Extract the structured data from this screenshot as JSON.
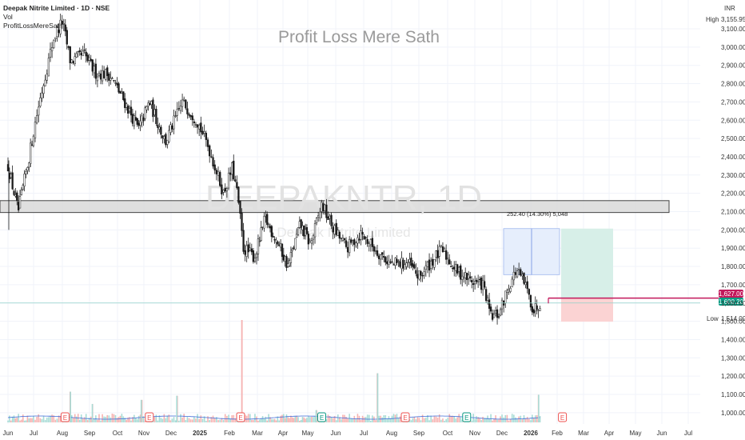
{
  "header": {
    "title": "Deepak Nitrite Limited · 1D · NSE",
    "vol_label": "Vol",
    "indicator_label": "ProfitLossMereSath",
    "watermark": "Profit Loss Mere Sath",
    "symbol_watermark": "DEEPAKNTR, 1D",
    "symbol_subwatermark": "Deepak Nitrite Limited"
  },
  "price_axis": {
    "currency": "INR",
    "ticks": [
      "3,100.00",
      "3,000.00",
      "2,900.00",
      "2,800.00",
      "2,700.00",
      "2,600.00",
      "2,500.00",
      "2,400.00",
      "2,300.00",
      "2,200.00",
      "2,100.00",
      "2,000.00",
      "1,900.00",
      "1,800.00",
      "1,700.00",
      "1,600.00",
      "1,500.00",
      "1,400.00",
      "1,300.00",
      "1,200.00",
      "1,100.00",
      "1,000.00"
    ],
    "high_label": "High",
    "high_value": "3,155.95",
    "low_label": "Low",
    "low_value": "1,514.00",
    "badge_upper": "1,627.00",
    "badge_current": "1,600.20"
  },
  "time_axis": {
    "labels": [
      "Jun",
      "Jul",
      "Aug",
      "Sep",
      "Oct",
      "Nov",
      "Dec",
      "2025",
      "Feb",
      "Mar",
      "Apr",
      "May",
      "Jun",
      "Jul",
      "Aug",
      "Sep",
      "Oct",
      "Nov",
      "Dec",
      "2026",
      "Feb",
      "Mar",
      "Apr",
      "May",
      "Jun",
      "Jul"
    ]
  },
  "measure": {
    "label": "252.40 (14.30%) 5,048"
  },
  "earnings_marker": "E",
  "colors": {
    "up": "#26a69a",
    "down": "#ef5350",
    "candle": "#1b1b1b",
    "zone_fill": "#d9d9d9",
    "target_fill": "#d7efe8",
    "stop_fill": "#fbd3d3",
    "measure_fill": "#e6eefc",
    "magenta": "#c2185b",
    "teal_badge": "#089981",
    "volume_ma": "#3f6bd9"
  },
  "chart_data": {
    "type": "candlestick",
    "title": "Deepak Nitrite Limited · 1D · NSE",
    "ylabel": "INR",
    "ylim": [
      950,
      3200
    ],
    "high": 3155.95,
    "low": 1514.0,
    "last_close": 1600.2,
    "months": [
      "Jun",
      "Jul",
      "Aug",
      "Sep",
      "Oct",
      "Nov",
      "Dec",
      "2025",
      "Feb",
      "Mar",
      "Apr",
      "May",
      "Jun",
      "Jul",
      "Aug",
      "Sep",
      "Oct",
      "Nov",
      "Dec",
      "2026",
      "Feb",
      "Mar",
      "Apr",
      "May",
      "Jun",
      "Jul"
    ],
    "price_path": [
      {
        "x": 0.0,
        "y": 2350
      },
      {
        "x": 0.4,
        "y": 2100
      },
      {
        "x": 0.8,
        "y": 2380
      },
      {
        "x": 1.2,
        "y": 2700
      },
      {
        "x": 1.7,
        "y": 3050
      },
      {
        "x": 2.0,
        "y": 3140
      },
      {
        "x": 2.3,
        "y": 2920
      },
      {
        "x": 2.8,
        "y": 2960
      },
      {
        "x": 3.2,
        "y": 2860
      },
      {
        "x": 3.7,
        "y": 2850
      },
      {
        "x": 4.2,
        "y": 2720
      },
      {
        "x": 4.8,
        "y": 2550
      },
      {
        "x": 5.2,
        "y": 2700
      },
      {
        "x": 5.8,
        "y": 2480
      },
      {
        "x": 6.4,
        "y": 2700
      },
      {
        "x": 6.9,
        "y": 2600
      },
      {
        "x": 7.3,
        "y": 2450
      },
      {
        "x": 7.8,
        "y": 2200
      },
      {
        "x": 8.1,
        "y": 2340
      },
      {
        "x": 8.3,
        "y": 2180
      },
      {
        "x": 8.5,
        "y": 1900
      },
      {
        "x": 8.9,
        "y": 1850
      },
      {
        "x": 9.3,
        "y": 2060
      },
      {
        "x": 9.8,
        "y": 1930
      },
      {
        "x": 10.2,
        "y": 1800
      },
      {
        "x": 10.7,
        "y": 2030
      },
      {
        "x": 11.1,
        "y": 1920
      },
      {
        "x": 11.5,
        "y": 2140
      },
      {
        "x": 11.9,
        "y": 2010
      },
      {
        "x": 12.4,
        "y": 1900
      },
      {
        "x": 12.9,
        "y": 1980
      },
      {
        "x": 13.5,
        "y": 1880
      },
      {
        "x": 14.0,
        "y": 1810
      },
      {
        "x": 14.6,
        "y": 1820
      },
      {
        "x": 15.0,
        "y": 1740
      },
      {
        "x": 15.4,
        "y": 1820
      },
      {
        "x": 15.8,
        "y": 1890
      },
      {
        "x": 16.3,
        "y": 1780
      },
      {
        "x": 16.9,
        "y": 1720
      },
      {
        "x": 17.3,
        "y": 1700
      },
      {
        "x": 17.6,
        "y": 1520
      },
      {
        "x": 17.9,
        "y": 1540
      },
      {
        "x": 18.2,
        "y": 1680
      },
      {
        "x": 18.5,
        "y": 1780
      },
      {
        "x": 18.8,
        "y": 1700
      },
      {
        "x": 19.1,
        "y": 1560
      },
      {
        "x": 19.35,
        "y": 1600
      }
    ],
    "zones": [
      {
        "name": "resistance",
        "y_low": 2095,
        "y_high": 2160
      },
      {
        "name": "measure",
        "y_low": 1755,
        "y_high": 2007
      },
      {
        "name": "target",
        "y_low": 1627,
        "y_high": 2007
      },
      {
        "name": "stop",
        "y_low": 1498,
        "y_high": 1627
      }
    ],
    "horizontal_lines": [
      {
        "name": "upper-level",
        "y": 1627
      },
      {
        "name": "current-level",
        "y": 1600
      }
    ],
    "volume_spikes": [
      {
        "x": 8.45,
        "v": 1.0
      },
      {
        "x": 13.5,
        "v": 0.48
      },
      {
        "x": 19.3,
        "v": 0.27
      },
      {
        "x": 2.3,
        "v": 0.3
      },
      {
        "x": 4.9,
        "v": 0.22
      },
      {
        "x": 3.1,
        "v": 0.18
      },
      {
        "x": 6.2,
        "v": 0.26
      },
      {
        "x": 11.3,
        "v": 0.12
      }
    ],
    "earnings_x": [
      2.1,
      5.2,
      8.4,
      11.5,
      14.5,
      16.7,
      20.2
    ],
    "grid": true,
    "legend": "top-left"
  }
}
